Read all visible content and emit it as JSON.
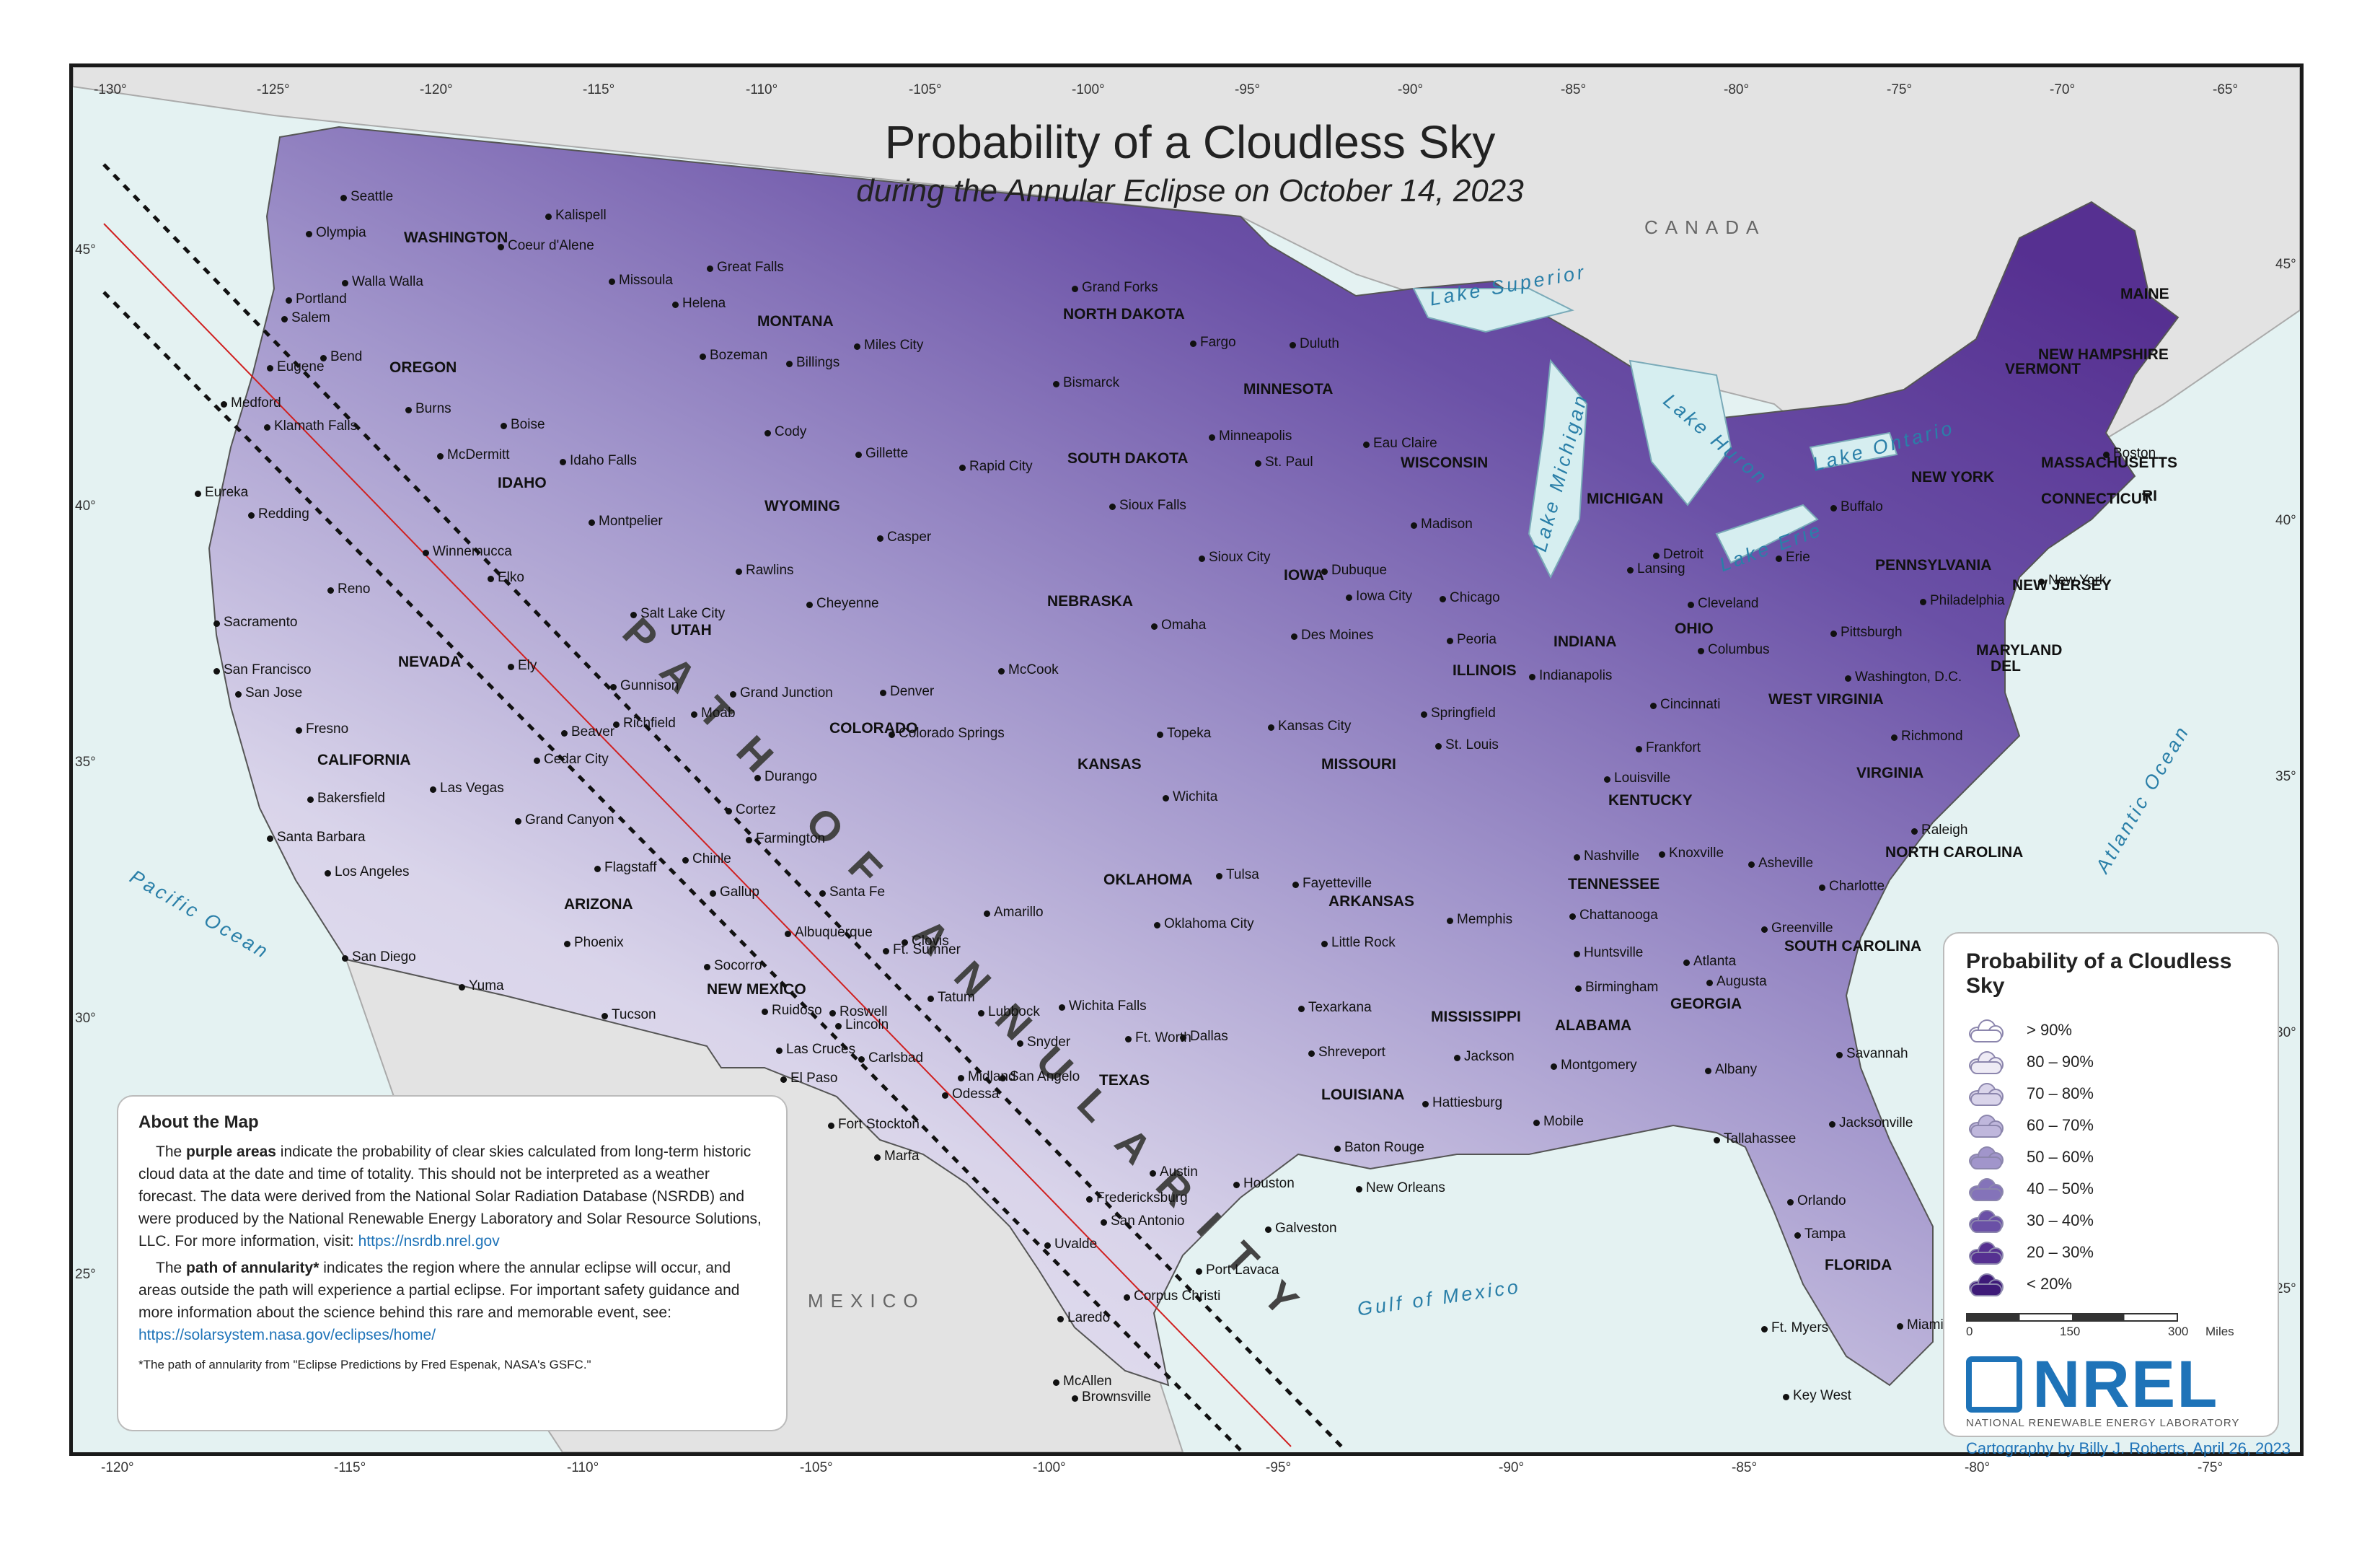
{
  "title": "Probability of a Cloudless Sky",
  "subtitle": "during the Annular Eclipse on October 14, 2023",
  "path_label": "PATH OF ANNULARITY",
  "top_ticks": [
    "-130°",
    "-125°",
    "-120°",
    "-115°",
    "-110°",
    "-105°",
    "-100°",
    "-95°",
    "-90°",
    "-85°",
    "-80°",
    "-75°",
    "-70°",
    "-65°"
  ],
  "bottom_ticks": [
    "-120°",
    "-115°",
    "-110°",
    "-105°",
    "-100°",
    "-95°",
    "-90°",
    "-85°",
    "-80°",
    "-75°"
  ],
  "left_ticks": [
    "45°",
    "40°",
    "35°",
    "30°",
    "25°"
  ],
  "right_ticks": [
    "45°",
    "40°",
    "35°",
    "30°",
    "25°"
  ],
  "states": [
    "WASHINGTON",
    "OREGON",
    "CALIFORNIA",
    "NEVADA",
    "IDAHO",
    "MONTANA",
    "WYOMING",
    "UTAH",
    "ARIZONA",
    "COLORADO",
    "NEW MEXICO",
    "NORTH DAKOTA",
    "SOUTH DAKOTA",
    "NEBRASKA",
    "KANSAS",
    "OKLAHOMA",
    "TEXAS",
    "MINNESOTA",
    "IOWA",
    "MISSOURI",
    "ARKANSAS",
    "LOUISIANA",
    "WISCONSIN",
    "ILLINOIS",
    "MISSISSIPPI",
    "MICHIGAN",
    "INDIANA",
    "KENTUCKY",
    "TENNESSEE",
    "ALABAMA",
    "OHIO",
    "GEORGIA",
    "FLORIDA",
    "WEST VIRGINIA",
    "VIRGINIA",
    "NORTH CAROLINA",
    "SOUTH CAROLINA",
    "PENNSYLVANIA",
    "NEW YORK",
    "MAINE",
    "VERMONT",
    "NEW HAMPSHIRE",
    "MASSACHUSETTS",
    "CONNECTICUT",
    "RI",
    "NEW JERSEY",
    "MARYLAND",
    "DEL"
  ],
  "cities": [
    "Seattle",
    "Olympia",
    "Portland",
    "Salem",
    "Eugene",
    "Bend",
    "Medford",
    "Klamath Falls",
    "Walla Walla",
    "Kalispell",
    "Coeur d'Alene",
    "Missoula",
    "Helena",
    "Great Falls",
    "Bozeman",
    "Billings",
    "Burns",
    "Boise",
    "Idaho Falls",
    "Eureka",
    "Redding",
    "Reno",
    "Sacramento",
    "San Francisco",
    "San Jose",
    "Fresno",
    "Bakersfield",
    "Santa Barbara",
    "Los Angeles",
    "San Diego",
    "Yuma",
    "Phoenix",
    "Tucson",
    "Flagstaff",
    "Grand Canyon",
    "Las Vegas",
    "Cedar City",
    "Winnemucca",
    "Elko",
    "Ely",
    "Gunnison",
    "Richfield",
    "Beaver",
    "Salt Lake City",
    "Montpelier",
    "McDermitt",
    "Cody",
    "Gillette",
    "Rapid City",
    "Casper",
    "Rawlins",
    "Cheyenne",
    "Grand Junction",
    "Moab",
    "Denver",
    "Colorado Springs",
    "Durango",
    "Cortez",
    "Farmington",
    "Chinle",
    "Gallup",
    "Albuquerque",
    "Santa Fe",
    "Socorro",
    "Ruidoso",
    "Las Cruces",
    "El Paso",
    "Roswell",
    "Lincoln",
    "Ft. Sumner",
    "Clovis",
    "Tatum",
    "Carlsbad",
    "Odessa",
    "Midland",
    "San Angelo",
    "Fort Stockton",
    "Marfa",
    "Amarillo",
    "Lubbock",
    "Snyder",
    "Wichita Falls",
    "Ft. Worth",
    "Dallas",
    "Austin",
    "Houston",
    "Galveston",
    "San Antonio",
    "Fredericksburg",
    "Uvalde",
    "Corpus Christi",
    "Port Lavaca",
    "Laredo",
    "McAllen",
    "Brownsville",
    "Miles City",
    "Grand Forks",
    "Bismarck",
    "Fargo",
    "Duluth",
    "Minneapolis",
    "St. Paul",
    "Sioux Falls",
    "Sioux City",
    "Omaha",
    "McCook",
    "Topeka",
    "Wichita",
    "Kansas City",
    "Oklahoma City",
    "Tulsa",
    "Fayetteville",
    "Little Rock",
    "Texarkana",
    "Shreveport",
    "Baton Rouge",
    "New Orleans",
    "Jackson",
    "Hattiesburg",
    "Memphis",
    "Springfield",
    "St. Louis",
    "Des Moines",
    "Dubuque",
    "Iowa City",
    "Eau Claire",
    "Madison",
    "Chicago",
    "Peoria",
    "Indianapolis",
    "Lansing",
    "Detroit",
    "Cleveland",
    "Columbus",
    "Cincinnati",
    "Louisville",
    "Frankfort",
    "Nashville",
    "Knoxville",
    "Chattanooga",
    "Huntsville",
    "Birmingham",
    "Montgomery",
    "Mobile",
    "Atlanta",
    "Augusta",
    "Albany",
    "Tallahassee",
    "Jacksonville",
    "Savannah",
    "Orlando",
    "Tampa",
    "Ft. Myers",
    "Miami",
    "Key West",
    "Charlotte",
    "Asheville",
    "Greenville",
    "Raleigh",
    "Richmond",
    "Washington, D.C.",
    "Philadelphia",
    "Pittsburgh",
    "Erie",
    "Buffalo",
    "Boston",
    "New York"
  ],
  "water": [
    "Pacific Ocean",
    "Atlantic Ocean",
    "Gulf of Mexico",
    "Lake Superior",
    "Lake Michigan",
    "Lake Huron",
    "Lake Erie",
    "Lake Ontario"
  ],
  "countries": [
    "CANADA",
    "MEXICO"
  ],
  "about": {
    "heading": "About the Map",
    "p1_lead": "The ",
    "p1_bold": "purple areas",
    "p1_text": " indicate the probability of clear skies calculated from long-term historic cloud data at the date and time of totality. This should not be interpreted as a weather forecast. The data were derived from the National Solar Radiation Database (NSRDB) and were produced by the National Renewable Energy Laboratory and Solar Resource Solutions, LLC. For more information, visit: ",
    "p1_link": "https://nsrdb.nrel.gov",
    "p2_lead": "The ",
    "p2_bold": "path of annularity*",
    "p2_text": " indicates the region where the annular eclipse will occur, and areas outside the path will experience a partial eclipse. For important safety guidance and more information about the science behind this rare and memorable event, see: ",
    "p2_link": "https://solarsystem.nasa.gov/eclipses/home/",
    "footnote": "*The path of annularity from \"Eclipse Predictions by Fred Espenak, NASA's GSFC.\""
  },
  "legend": {
    "title": "Probability of a Cloudless Sky",
    "items": [
      {
        "label": "> 90%",
        "color": "#ffffff"
      },
      {
        "label": "80 – 90%",
        "color": "#eeebf5"
      },
      {
        "label": "70 – 80%",
        "color": "#d9d4ea"
      },
      {
        "label": "60 – 70%",
        "color": "#bfb7dc"
      },
      {
        "label": "50 – 60%",
        "color": "#a195cb"
      },
      {
        "label": "40 – 50%",
        "color": "#8473b9"
      },
      {
        "label": "30 – 40%",
        "color": "#6a50a6"
      },
      {
        "label": "20 – 30%",
        "color": "#563091"
      },
      {
        "label": "< 20%",
        "color": "#3e1a78"
      }
    ],
    "scale_ticks": [
      "0",
      "150",
      "300"
    ],
    "scale_unit": "Miles",
    "org_logo": "NREL",
    "org_name": "NATIONAL RENEWABLE ENERGY LABORATORY",
    "credit": "Cartography by Billy J. Roberts,  April 26, 2023"
  }
}
